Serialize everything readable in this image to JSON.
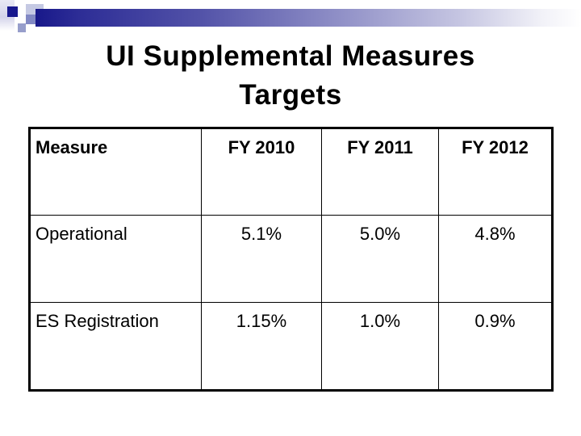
{
  "slide_title": {
    "line1": "UI Supplemental Measures",
    "line2": "Targets"
  },
  "table": {
    "headers": [
      "Measure",
      "FY 2010",
      "FY 2011",
      "FY 2012"
    ],
    "rows": [
      [
        "Operational",
        "5.1%",
        "5.0%",
        "4.8%"
      ],
      [
        "ES Registration",
        "1.15%",
        "1.0%",
        "0.9%"
      ]
    ]
  },
  "decoration": {
    "bar_gradient_start": "#18188a",
    "bar_gradient_end": "#ffffff",
    "navy_square": "#18188e",
    "light_square": "#c5c9e3",
    "medium_square": "#8289c4",
    "small_square": "#979ecb",
    "strip_color": "#d3d3ea"
  },
  "colors": {
    "background": "#ffffff",
    "text": "#000000",
    "table_border": "#000000"
  }
}
